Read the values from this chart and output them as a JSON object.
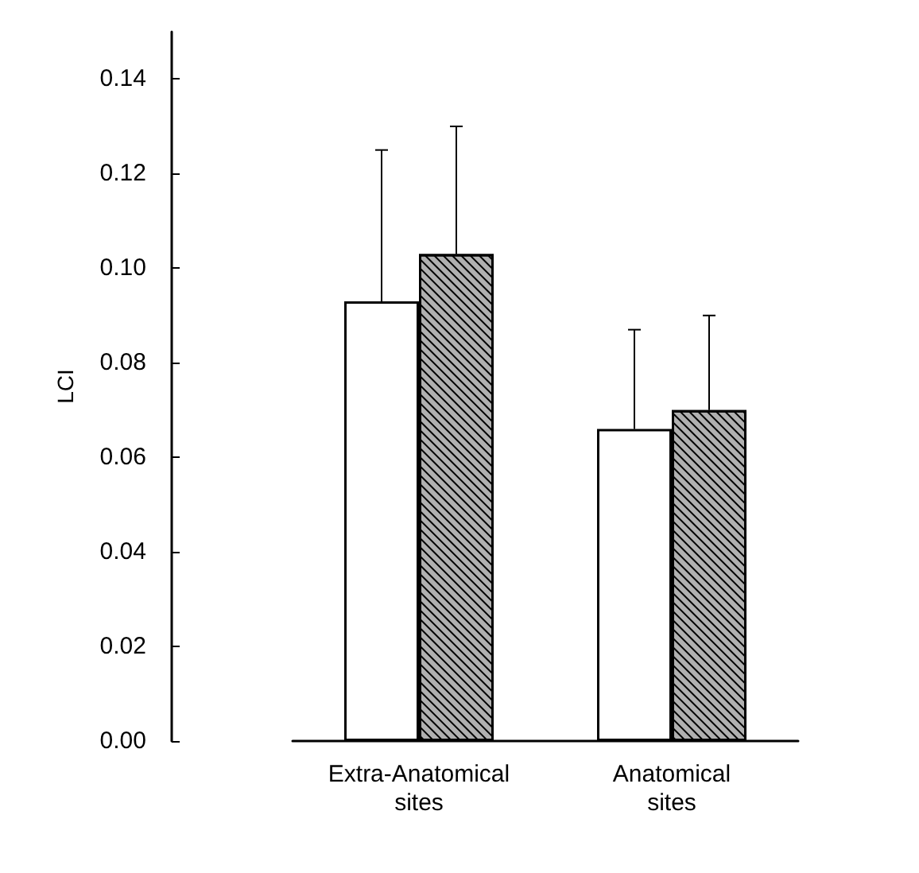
{
  "chart_data": {
    "type": "bar",
    "ylabel": "LCI",
    "categories": [
      "Extra-Anatomical\nsites",
      "Anatomical\nsites"
    ],
    "series": [
      {
        "color": "#ffffff",
        "values": [
          0.093,
          0.066
        ],
        "errors": [
          [
            0.093,
            0.125
          ],
          [
            0.066,
            0.087
          ]
        ]
      },
      {
        "color": "#b0b0b0",
        "values": [
          0.103,
          0.07
        ],
        "errors": [
          [
            0.103,
            0.13
          ],
          [
            0.07,
            0.09
          ]
        ]
      }
    ],
    "ylim": [
      0,
      0.15
    ],
    "yticks": [
      {
        "value": 0,
        "label": "0.00"
      },
      {
        "value": 0.02,
        "label": "0.02"
      },
      {
        "value": 0.04,
        "label": "0.04"
      },
      {
        "value": 0.06,
        "label": "0.06"
      },
      {
        "value": 0.08,
        "label": "0.08"
      },
      {
        "value": 0.1,
        "label": "0.10"
      },
      {
        "value": 0.12,
        "label": "0.12"
      },
      {
        "value": 0.14,
        "label": "0.14"
      }
    ],
    "grid": false
  }
}
